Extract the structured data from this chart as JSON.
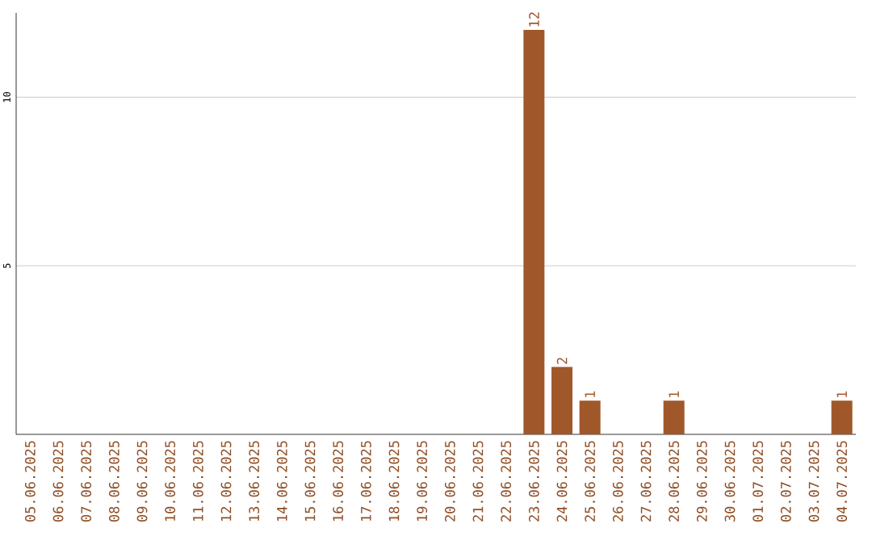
{
  "chart_data": {
    "type": "bar",
    "categories": [
      "05.06.2025",
      "06.06.2025",
      "07.06.2025",
      "08.06.2025",
      "09.06.2025",
      "10.06.2025",
      "11.06.2025",
      "12.06.2025",
      "13.06.2025",
      "14.06.2025",
      "15.06.2025",
      "16.06.2025",
      "17.06.2025",
      "18.06.2025",
      "19.06.2025",
      "20.06.2025",
      "21.06.2025",
      "22.06.2025",
      "23.06.2025",
      "24.06.2025",
      "25.06.2025",
      "26.06.2025",
      "27.06.2025",
      "28.06.2025",
      "29.06.2025",
      "30.06.2025",
      "01.07.2025",
      "02.07.2025",
      "03.07.2025",
      "04.07.2025"
    ],
    "values": [
      0,
      0,
      0,
      0,
      0,
      0,
      0,
      0,
      0,
      0,
      0,
      0,
      0,
      0,
      0,
      0,
      0,
      0,
      12,
      2,
      1,
      0,
      0,
      1,
      0,
      0,
      0,
      0,
      0,
      1
    ],
    "value_labels": [
      null,
      null,
      null,
      null,
      null,
      null,
      null,
      null,
      null,
      null,
      null,
      null,
      null,
      null,
      null,
      null,
      null,
      null,
      "12",
      "2",
      "1",
      null,
      null,
      "1",
      null,
      null,
      null,
      null,
      null,
      "1"
    ],
    "color": "#a0582a",
    "ylim": [
      0,
      12.5
    ],
    "yticks": [
      5,
      10
    ],
    "grid": "y"
  }
}
